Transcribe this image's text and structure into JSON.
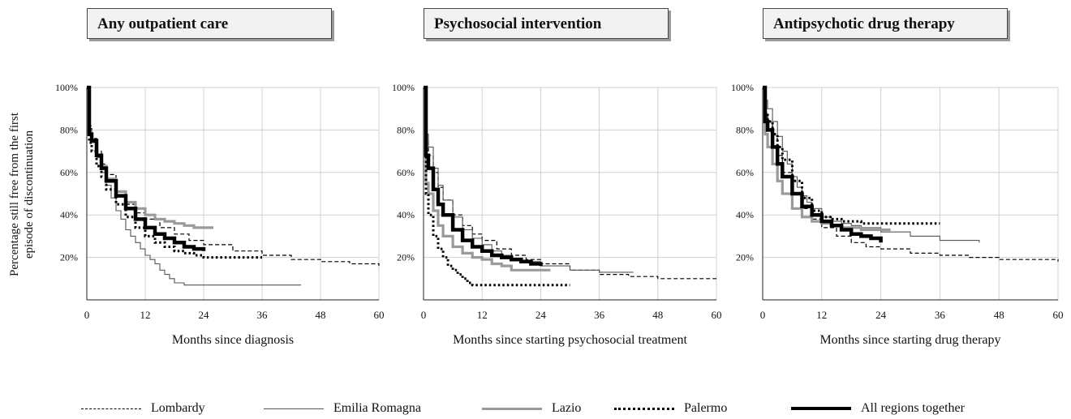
{
  "panels": [
    {
      "title": "Any outpatient care"
    },
    {
      "title": "Psychosocial intervention"
    },
    {
      "title": "Antipsychotic drug therapy"
    }
  ],
  "ylabel_line1": "Percentage still free from the first",
  "ylabel_line2": "episode of discontinuation",
  "legend": [
    {
      "name": "Lombardy",
      "style": "dashed-thin",
      "color": "#000000"
    },
    {
      "name": "Emilia Romagna",
      "style": "solid-thin",
      "color": "#555555"
    },
    {
      "name": "Lazio",
      "style": "solid-thick",
      "color": "#9a9a9a"
    },
    {
      "name": "Palermo",
      "style": "dotted-thick",
      "color": "#000000"
    },
    {
      "name": "All regions together",
      "style": "solid-heavy",
      "color": "#000000"
    }
  ],
  "chart_data": [
    {
      "type": "line",
      "title": "Any outpatient care",
      "xlabel": "Months since diagnosis",
      "ylabel": "Percentage still free from the first episode of discontinuation",
      "xlim": [
        0,
        60
      ],
      "ylim": [
        0,
        100
      ],
      "xticks": [
        "0",
        "12",
        "24",
        "36",
        "48",
        "60"
      ],
      "yticks": [
        "20%",
        "40%",
        "60%",
        "80%",
        "100%"
      ],
      "series": [
        {
          "name": "Lombardy",
          "x": [
            0,
            0.5,
            1,
            2,
            3,
            4,
            6,
            8,
            10,
            12,
            15,
            18,
            21,
            24,
            30,
            36,
            42,
            48,
            54,
            60
          ],
          "y": [
            100,
            82,
            76,
            70,
            64,
            59,
            51,
            45,
            41,
            38,
            34,
            31,
            28,
            26,
            23,
            21,
            19,
            18,
            17,
            16
          ]
        },
        {
          "name": "Emilia Romagna",
          "x": [
            0,
            0.5,
            1,
            2,
            3,
            4,
            5,
            6,
            7,
            8,
            9,
            10,
            11,
            12,
            13,
            14,
            15,
            16,
            17,
            18,
            20,
            25,
            30,
            36,
            44
          ],
          "y": [
            100,
            80,
            74,
            67,
            60,
            54,
            48,
            42,
            38,
            33,
            30,
            27,
            24,
            21,
            19,
            17,
            14,
            12,
            10,
            8,
            7,
            7,
            7,
            7,
            7
          ]
        },
        {
          "name": "Lazio",
          "x": [
            0,
            0.5,
            1,
            2,
            3,
            4,
            6,
            8,
            10,
            12,
            14,
            16,
            18,
            20,
            22,
            24,
            26
          ],
          "y": [
            100,
            78,
            75,
            68,
            63,
            57,
            51,
            46,
            43,
            40,
            38,
            37,
            36,
            35,
            34,
            34,
            34
          ]
        },
        {
          "name": "Palermo",
          "x": [
            0,
            0.5,
            1,
            2,
            3,
            4,
            6,
            8,
            10,
            12,
            14,
            16,
            18,
            20,
            22,
            24,
            28,
            32,
            36
          ],
          "y": [
            100,
            74,
            70,
            63,
            58,
            52,
            45,
            39,
            34,
            30,
            27,
            25,
            23,
            22,
            21,
            20,
            20,
            20,
            20
          ]
        },
        {
          "name": "All regions together",
          "x": [
            0,
            0.5,
            1,
            2,
            3,
            4,
            6,
            8,
            10,
            12,
            14,
            16,
            18,
            20,
            22,
            24
          ],
          "y": [
            100,
            78,
            75,
            68,
            62,
            56,
            49,
            43,
            38,
            34,
            31,
            29,
            27,
            25,
            24,
            23
          ]
        }
      ]
    },
    {
      "type": "line",
      "title": "Psychosocial intervention",
      "xlabel": "Months since starting psychosocial treatment",
      "ylabel": "",
      "xlim": [
        0,
        60
      ],
      "ylim": [
        0,
        100
      ],
      "xticks": [
        "0",
        "12",
        "24",
        "36",
        "48",
        "60"
      ],
      "yticks": [
        "20%",
        "40%",
        "60%",
        "80%",
        "100%"
      ],
      "series": [
        {
          "name": "Lombardy",
          "x": [
            0,
            0.5,
            1,
            2,
            3,
            4,
            6,
            8,
            10,
            12,
            15,
            18,
            21,
            24,
            30,
            36,
            42,
            48,
            54,
            60
          ],
          "y": [
            100,
            75,
            68,
            60,
            53,
            47,
            40,
            35,
            31,
            28,
            24,
            21,
            19,
            17,
            14,
            12,
            11,
            10,
            10,
            10
          ]
        },
        {
          "name": "Emilia Romagna",
          "x": [
            0,
            0.5,
            1,
            2,
            3,
            4,
            6,
            8,
            10,
            12,
            14,
            16,
            18,
            20,
            24,
            30,
            36,
            43
          ],
          "y": [
            100,
            78,
            72,
            62,
            54,
            47,
            39,
            33,
            29,
            26,
            23,
            21,
            19,
            18,
            16,
            14,
            13,
            13
          ]
        },
        {
          "name": "Lazio",
          "x": [
            0,
            0.5,
            1,
            2,
            3,
            4,
            6,
            8,
            10,
            12,
            14,
            16,
            18,
            20,
            24,
            26
          ],
          "y": [
            100,
            55,
            50,
            42,
            35,
            30,
            25,
            22,
            20,
            19,
            17,
            16,
            14,
            14,
            14,
            14
          ]
        },
        {
          "name": "Palermo",
          "x": [
            0,
            0.5,
            1,
            2,
            3,
            4,
            5,
            6,
            7,
            8,
            9,
            10,
            12,
            14,
            16,
            18,
            20,
            24,
            30
          ],
          "y": [
            100,
            50,
            40,
            30,
            24,
            20,
            16,
            14,
            12,
            10,
            8,
            7,
            7,
            7,
            7,
            7,
            7,
            7,
            7
          ]
        },
        {
          "name": "All regions together",
          "x": [
            0,
            0.5,
            1,
            2,
            3,
            4,
            6,
            8,
            10,
            12,
            14,
            16,
            18,
            20,
            22,
            24
          ],
          "y": [
            100,
            68,
            62,
            52,
            45,
            40,
            33,
            28,
            25,
            23,
            21,
            20,
            19,
            18,
            17,
            16
          ]
        }
      ]
    },
    {
      "type": "line",
      "title": "Antipsychotic drug therapy",
      "xlabel": "Months since starting drug therapy",
      "ylabel": "",
      "xlim": [
        0,
        60
      ],
      "ylim": [
        0,
        100
      ],
      "xticks": [
        "0",
        "12",
        "24",
        "36",
        "48",
        "60"
      ],
      "yticks": [
        "20%",
        "40%",
        "60%",
        "80%",
        "100%"
      ],
      "series": [
        {
          "name": "Lombardy",
          "x": [
            0,
            0.5,
            1,
            2,
            3,
            4,
            6,
            8,
            10,
            12,
            15,
            18,
            21,
            24,
            30,
            36,
            42,
            48,
            54,
            60
          ],
          "y": [
            100,
            88,
            84,
            76,
            68,
            60,
            50,
            43,
            38,
            34,
            30,
            27,
            25,
            24,
            22,
            21,
            20,
            19,
            19,
            18
          ]
        },
        {
          "name": "Emilia Romagna",
          "x": [
            0,
            0.5,
            1,
            2,
            3,
            4,
            5,
            6,
            7,
            8,
            9,
            10,
            12,
            14,
            16,
            18,
            20,
            24,
            30,
            36,
            44
          ],
          "y": [
            100,
            94,
            90,
            84,
            77,
            70,
            64,
            58,
            53,
            49,
            46,
            43,
            39,
            37,
            36,
            35,
            34,
            32,
            30,
            28,
            27
          ]
        },
        {
          "name": "Lazio",
          "x": [
            0,
            0.5,
            1,
            2,
            3,
            4,
            6,
            8,
            10,
            12,
            14,
            16,
            18,
            20,
            22,
            24,
            26
          ],
          "y": [
            100,
            78,
            72,
            64,
            56,
            50,
            43,
            39,
            37,
            36,
            35,
            34,
            34,
            33,
            33,
            33,
            33
          ]
        },
        {
          "name": "Palermo",
          "x": [
            0,
            0.5,
            1,
            2,
            3,
            4,
            6,
            8,
            10,
            12,
            14,
            16,
            18,
            20,
            24,
            28,
            32,
            36
          ],
          "y": [
            100,
            88,
            84,
            78,
            72,
            66,
            56,
            48,
            42,
            39,
            38,
            37,
            37,
            36,
            36,
            36,
            36,
            36
          ]
        },
        {
          "name": "All regions together",
          "x": [
            0,
            0.5,
            1,
            2,
            3,
            4,
            6,
            8,
            10,
            12,
            14,
            16,
            18,
            20,
            22,
            24
          ],
          "y": [
            100,
            84,
            80,
            72,
            64,
            58,
            50,
            44,
            40,
            37,
            35,
            33,
            31,
            30,
            29,
            27
          ]
        }
      ]
    }
  ]
}
